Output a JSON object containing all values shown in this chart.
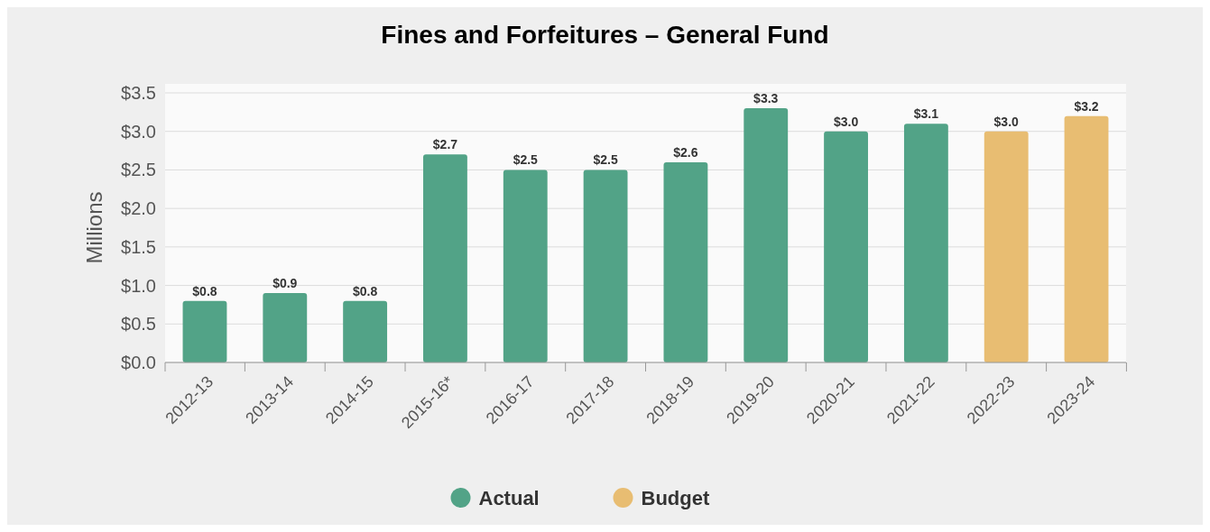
{
  "chart_data": {
    "type": "bar",
    "title": "Fines and Forfeitures – General Fund",
    "ylabel": "Millions",
    "categories": [
      "2012-13",
      "2013-14",
      "2014-15",
      "2015-16*",
      "2016-17",
      "2017-18",
      "2018-19",
      "2019-20",
      "2020-21",
      "2021-22",
      "2022-23",
      "2023-24"
    ],
    "stacked": true,
    "series": [
      {
        "name": "Actual",
        "color": "#52a387",
        "values": [
          0.8,
          0.9,
          0.8,
          2.7,
          2.5,
          2.5,
          2.6,
          3.3,
          3.0,
          3.1,
          null,
          null
        ],
        "value_labels": [
          "$0.8",
          "$0.9",
          "$0.8",
          "$2.7",
          "$2.5",
          "$2.5",
          "$2.6",
          "$3.3",
          "$3.0",
          "$3.1",
          null,
          null
        ]
      },
      {
        "name": "Budget",
        "color": "#e8bd72",
        "values": [
          null,
          null,
          null,
          null,
          null,
          null,
          null,
          null,
          null,
          null,
          3.0,
          3.2
        ],
        "value_labels": [
          null,
          null,
          null,
          null,
          null,
          null,
          null,
          null,
          null,
          null,
          "$3.0",
          "$3.2"
        ]
      }
    ],
    "ylim": [
      0,
      3.5
    ],
    "yticks": [
      {
        "value": 0,
        "label": "$0.0"
      },
      {
        "value": 0.5,
        "label": "$0.5"
      },
      {
        "value": 1,
        "label": "$1.0"
      },
      {
        "value": 1.5,
        "label": "$1.5"
      },
      {
        "value": 2,
        "label": "$2.0"
      },
      {
        "value": 2.5,
        "label": "$2.5"
      },
      {
        "value": 3,
        "label": "$3.0"
      },
      {
        "value": 3.5,
        "label": "$3.5"
      }
    ],
    "grid": "y",
    "legend": "bottom"
  }
}
